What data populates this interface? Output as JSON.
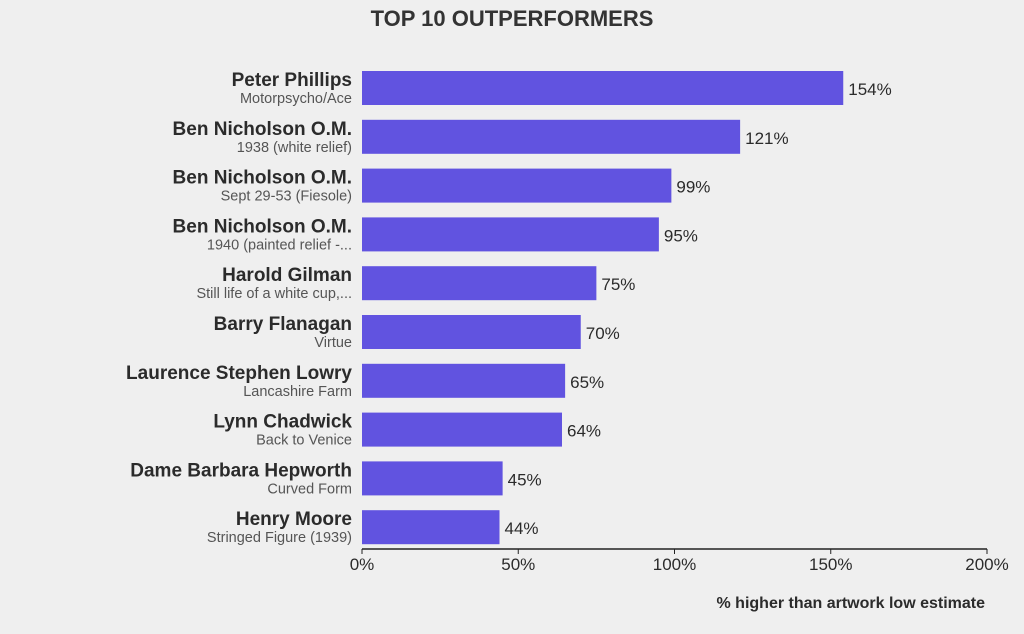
{
  "chart_data": {
    "type": "bar",
    "orientation": "horizontal",
    "title": "TOP 10 OUTPERFORMERS",
    "xlabel": "% higher than artwork low estimate",
    "xlim": [
      0,
      200
    ],
    "xticks": [
      0,
      50,
      100,
      150,
      200
    ],
    "xtick_labels": [
      "0%",
      "50%",
      "100%",
      "150%",
      "200%"
    ],
    "bar_color": "#6153e0",
    "grid": false,
    "categories": [
      {
        "artist": "Peter Phillips",
        "work": "Motorpsycho/Ace",
        "value": 154,
        "label": "154%"
      },
      {
        "artist": "Ben Nicholson O.M.",
        "work": "1938 (white relief)",
        "value": 121,
        "label": "121%"
      },
      {
        "artist": "Ben Nicholson O.M.",
        "work": "Sept 29-53 (Fiesole)",
        "value": 99,
        "label": "99%"
      },
      {
        "artist": "Ben Nicholson O.M.",
        "work": "1940 (painted relief -...",
        "value": 95,
        "label": "95%"
      },
      {
        "artist": "Harold Gilman",
        "work": "Still life of a white cup,...",
        "value": 75,
        "label": "75%"
      },
      {
        "artist": "Barry Flanagan",
        "work": "Virtue",
        "value": 70,
        "label": "70%"
      },
      {
        "artist": "Laurence Stephen Lowry",
        "work": "Lancashire Farm",
        "value": 65,
        "label": "65%"
      },
      {
        "artist": "Lynn Chadwick",
        "work": "Back to Venice",
        "value": 64,
        "label": "64%"
      },
      {
        "artist": "Dame Barbara Hepworth",
        "work": "Curved Form",
        "value": 45,
        "label": "45%"
      },
      {
        "artist": "Henry Moore",
        "work": "Stringed Figure (1939)",
        "value": 44,
        "label": "44%"
      }
    ]
  }
}
